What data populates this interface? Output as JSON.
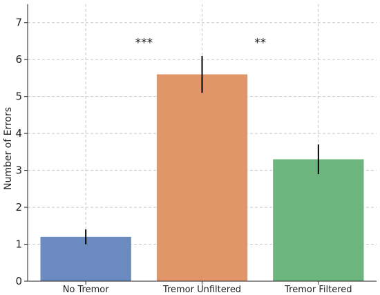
{
  "chart_data": {
    "type": "bar",
    "title": "",
    "xlabel": "",
    "ylabel": "Number of Errors",
    "ylim": [
      0,
      7.5
    ],
    "yticks": [
      0,
      1,
      2,
      3,
      4,
      5,
      6,
      7
    ],
    "categories": [
      "No Tremor",
      "Tremor Unfiltered",
      "Tremor Filtered"
    ],
    "values": [
      1.2,
      5.6,
      3.3
    ],
    "error": [
      0.2,
      0.5,
      0.4
    ],
    "colors": [
      "#6b8abf",
      "#e1966a",
      "#6db57f"
    ],
    "grid": true,
    "annotations": [
      {
        "text": "***",
        "x": 0.5,
        "y": 6.5
      },
      {
        "text": "**",
        "x": 1.5,
        "y": 6.5
      }
    ]
  }
}
